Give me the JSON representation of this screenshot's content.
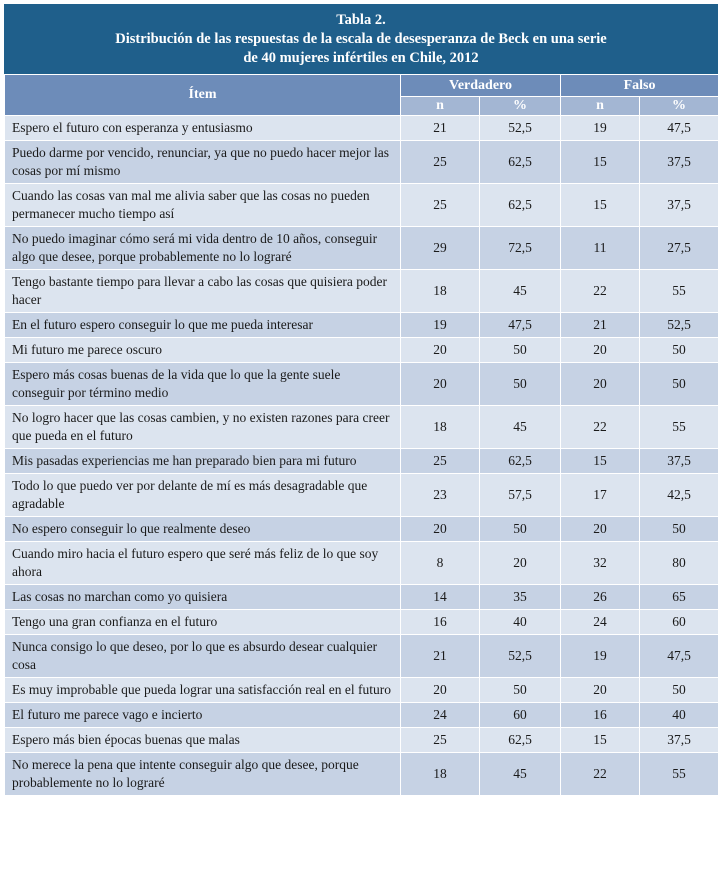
{
  "table": {
    "title_line1": "Tabla 2.",
    "title_line2": "Distribución de las respuestas de la escala de desesperanza de Beck en una serie",
    "title_line3": "de 40 mujeres infértiles en Chile, 2012",
    "headers": {
      "item": "Ítem",
      "verdadero": "Verdadero",
      "falso": "Falso",
      "n": "n",
      "pct": "%"
    },
    "rows": [
      {
        "item": "Espero el futuro con esperanza y entusiasmo",
        "vn": "21",
        "vp": "52,5",
        "fn": "19",
        "fp": "47,5"
      },
      {
        "item": "Puedo darme por vencido, renunciar, ya que no puedo hacer mejor las cosas por mí mismo",
        "vn": "25",
        "vp": "62,5",
        "fn": "15",
        "fp": "37,5"
      },
      {
        "item": "Cuando las cosas van mal me alivia saber que las cosas no pueden permanecer mucho tiempo así",
        "vn": "25",
        "vp": "62,5",
        "fn": "15",
        "fp": "37,5"
      },
      {
        "item": "No puedo imaginar cómo será mi vida dentro de 10 años, conseguir algo que desee, porque probablemente no lo lograré",
        "vn": "29",
        "vp": "72,5",
        "fn": "11",
        "fp": "27,5"
      },
      {
        "item": "Tengo bastante tiempo para llevar a cabo las cosas que quisiera poder hacer",
        "vn": "18",
        "vp": "45",
        "fn": "22",
        "fp": "55"
      },
      {
        "item": "En el futuro espero conseguir lo que me pueda interesar",
        "vn": "19",
        "vp": "47,5",
        "fn": "21",
        "fp": "52,5"
      },
      {
        "item": "Mi futuro me parece oscuro",
        "vn": "20",
        "vp": "50",
        "fn": "20",
        "fp": "50"
      },
      {
        "item": "Espero más cosas buenas de la vida que lo que la gente suele conseguir por término medio",
        "vn": "20",
        "vp": "50",
        "fn": "20",
        "fp": "50"
      },
      {
        "item": "No logro hacer que las cosas cambien, y no existen razones para creer que pueda en el futuro",
        "vn": "18",
        "vp": "45",
        "fn": "22",
        "fp": "55"
      },
      {
        "item": "Mis pasadas experiencias me han preparado bien para mi futuro",
        "vn": "25",
        "vp": "62,5",
        "fn": "15",
        "fp": "37,5"
      },
      {
        "item": "Todo lo que puedo ver por delante de mí es más desagradable que agradable",
        "vn": "23",
        "vp": "57,5",
        "fn": "17",
        "fp": "42,5"
      },
      {
        "item": "No espero conseguir lo que realmente deseo",
        "vn": "20",
        "vp": "50",
        "fn": "20",
        "fp": "50"
      },
      {
        "item": "Cuando miro hacia el futuro espero que seré más feliz de lo que soy ahora",
        "vn": "8",
        "vp": "20",
        "fn": "32",
        "fp": "80"
      },
      {
        "item": "Las cosas no marchan como yo quisiera",
        "vn": "14",
        "vp": "35",
        "fn": "26",
        "fp": "65"
      },
      {
        "item": "Tengo una gran confianza en el futuro",
        "vn": "16",
        "vp": "40",
        "fn": "24",
        "fp": "60"
      },
      {
        "item": "Nunca consigo lo que deseo, por lo que es absurdo desear cualquier cosa",
        "vn": "21",
        "vp": "52,5",
        "fn": "19",
        "fp": "47,5"
      },
      {
        "item": "Es muy improbable que pueda lograr una satisfacción real en el futuro",
        "vn": "20",
        "vp": "50",
        "fn": "20",
        "fp": "50"
      },
      {
        "item": "El futuro me parece vago e incierto",
        "vn": "24",
        "vp": "60",
        "fn": "16",
        "fp": "40"
      },
      {
        "item": "Espero más bien épocas buenas que malas",
        "vn": "25",
        "vp": "62,5",
        "fn": "15",
        "fp": "37,5"
      },
      {
        "item": "No merece la pena que intente conseguir algo que desee, porque probablemente no lo lograré",
        "vn": "18",
        "vp": "45",
        "fn": "22",
        "fp": "55"
      }
    ]
  }
}
